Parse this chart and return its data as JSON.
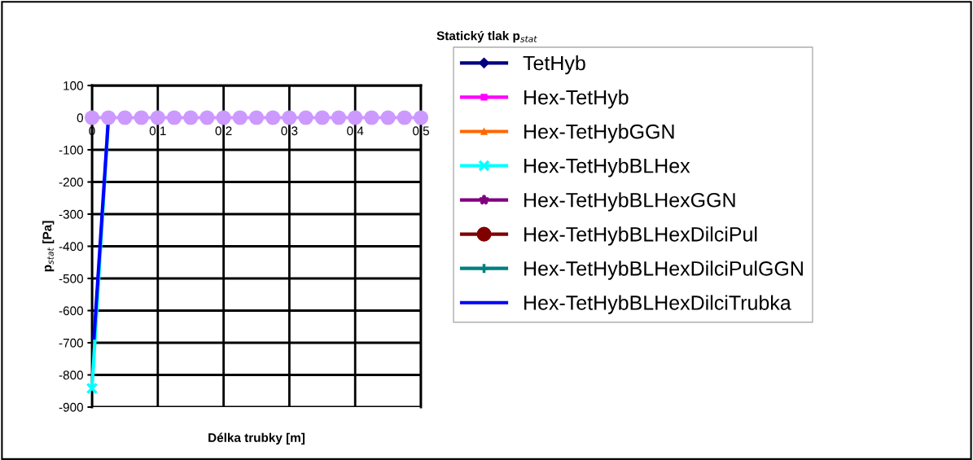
{
  "chart_data": {
    "type": "line",
    "title": "Statický tlak p$_{stat}$",
    "xlabel": "Délka trubky [m]",
    "ylabel": "p$_{stat}$ [Pa]",
    "x": [
      0,
      0.025,
      0.05,
      0.075,
      0.1,
      0.125,
      0.15,
      0.175,
      0.2,
      0.225,
      0.25,
      0.275,
      0.3,
      0.325,
      0.35,
      0.375,
      0.4,
      0.425,
      0.45,
      0.475,
      0.5
    ],
    "series": [
      {
        "name": "TetHyb",
        "color": "#000080",
        "marker": "diamond",
        "values": [
          null,
          null,
          null,
          null,
          null,
          null,
          null,
          null,
          null,
          null,
          null,
          null,
          null,
          null,
          null,
          null,
          null,
          null,
          null,
          null,
          null
        ]
      },
      {
        "name": "Hex-TetHyb",
        "color": "#ff00ff",
        "marker": "square",
        "values": [
          null,
          null,
          null,
          null,
          null,
          null,
          null,
          null,
          null,
          null,
          null,
          null,
          null,
          null,
          null,
          null,
          null,
          null,
          null,
          null,
          null
        ]
      },
      {
        "name": "Hex-TetHybGGN",
        "color": "#ff6600",
        "marker": "triangle",
        "values": [
          null,
          null,
          null,
          null,
          null,
          null,
          null,
          null,
          null,
          null,
          null,
          null,
          null,
          null,
          null,
          null,
          null,
          null,
          null,
          null,
          null
        ]
      },
      {
        "name": "Hex-TetHybBLHex",
        "color": "#00ffff",
        "marker": "cross",
        "x": [
          0,
          0.025
        ],
        "values": [
          -842,
          0
        ]
      },
      {
        "name": "Hex-TetHybBLHexGGN",
        "color": "#800080",
        "marker": "star",
        "values": [
          null,
          null,
          null,
          null,
          null,
          null,
          null,
          null,
          null,
          null,
          null,
          null,
          null,
          null,
          null,
          null,
          null,
          null,
          null,
          null,
          null
        ]
      },
      {
        "name": "Hex-TetHybBLHexDilciPul",
        "color": "#800000",
        "marker": "circle",
        "values": [
          null,
          null,
          null,
          null,
          null,
          null,
          null,
          null,
          null,
          null,
          null,
          null,
          null,
          null,
          null,
          null,
          null,
          null,
          null,
          null,
          null
        ]
      },
      {
        "name": "Hex-TetHybBLHexDilciPulGGN",
        "color": "#008080",
        "marker": "plus",
        "values": [
          null,
          null,
          null,
          null,
          null,
          null,
          null,
          null,
          null,
          null,
          null,
          null,
          null,
          null,
          null,
          null,
          null,
          null,
          null,
          null,
          null
        ]
      },
      {
        "name": "Hex-TetHybBLHexDilciTrubka",
        "color": "#0000ff",
        "marker": "none",
        "x": [
          0.003,
          0.025
        ],
        "values": [
          -685,
          0
        ]
      },
      {
        "color": "#cc99ff",
        "marker": "circle",
        "values": [
          0,
          0,
          0,
          0,
          0,
          0,
          0,
          0,
          0,
          0,
          0,
          0,
          0,
          0,
          0,
          0,
          0,
          0,
          0,
          0,
          0
        ]
      }
    ],
    "xlim": [
      0,
      0.5
    ],
    "xticks": [
      0,
      {
        "value": 0.1,
        "label": "0,1"
      },
      {
        "value": 0.2,
        "label": "0,2"
      },
      {
        "value": 0.3,
        "label": "0,3"
      },
      {
        "value": 0.4,
        "label": "0,4"
      },
      {
        "value": 0.5,
        "label": "0,5"
      }
    ],
    "ylim": [
      -900,
      100
    ],
    "yticks": [
      -900,
      -800,
      -700,
      -600,
      -500,
      -400,
      -300,
      -200,
      -100,
      0,
      100
    ],
    "grid": true,
    "legend": "right"
  }
}
